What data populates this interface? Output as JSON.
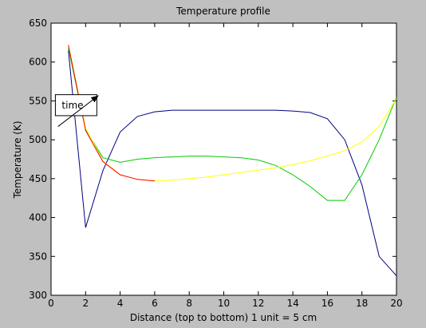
{
  "chart_data": {
    "type": "line",
    "title": "Temperature profile",
    "xlabel": "Distance (top to bottom) 1 unit = 5 cm",
    "ylabel": "Temperature (K)",
    "xlim": [
      0,
      20
    ],
    "ylim": [
      300,
      650
    ],
    "xticks": [
      0,
      2,
      4,
      6,
      8,
      10,
      12,
      14,
      16,
      18,
      20
    ],
    "yticks": [
      300,
      350,
      400,
      450,
      500,
      550,
      600,
      650
    ],
    "grid": false,
    "series": [
      {
        "color": "#000080",
        "x": [
          1,
          2,
          3,
          4,
          5,
          6,
          7,
          8,
          9,
          10,
          11,
          12,
          13,
          14,
          15,
          16,
          17,
          18,
          19,
          20
        ],
        "values": [
          615,
          387,
          460,
          510,
          530,
          536,
          538,
          538,
          538,
          538,
          538,
          538,
          538,
          537,
          535,
          527,
          500,
          442,
          350,
          325
        ]
      },
      {
        "color": "#00cc00",
        "x": [
          1,
          2,
          3,
          4,
          5,
          6,
          7,
          8,
          9,
          10,
          11,
          12,
          13,
          14,
          15,
          16,
          17,
          18,
          19,
          20
        ],
        "values": [
          618,
          513,
          477,
          471,
          475,
          477,
          478,
          479,
          479,
          478,
          477,
          474,
          467,
          455,
          440,
          422,
          422,
          455,
          500,
          555
        ]
      },
      {
        "color": "#ffff00",
        "x": [
          1,
          2,
          3,
          4,
          5,
          6,
          7,
          8,
          9,
          10,
          11,
          12,
          13,
          14,
          15,
          16,
          17,
          18,
          19,
          20
        ],
        "values": [
          622,
          515,
          473,
          455,
          449,
          447,
          448,
          450,
          452,
          455,
          458,
          461,
          464,
          468,
          473,
          479,
          486,
          497,
          517,
          553
        ]
      },
      {
        "color": "#ff0000",
        "x": [
          1,
          2,
          3,
          4,
          5,
          6
        ],
        "values": [
          622,
          512,
          472,
          455,
          449,
          447
        ]
      }
    ],
    "annotations": [
      {
        "text": "time",
        "box_x": [
          0.25,
          2.65
        ],
        "box_y": [
          531,
          558
        ],
        "arrow_from": [
          0.4,
          517
        ],
        "arrow_to": [
          2.75,
          557
        ]
      }
    ]
  }
}
